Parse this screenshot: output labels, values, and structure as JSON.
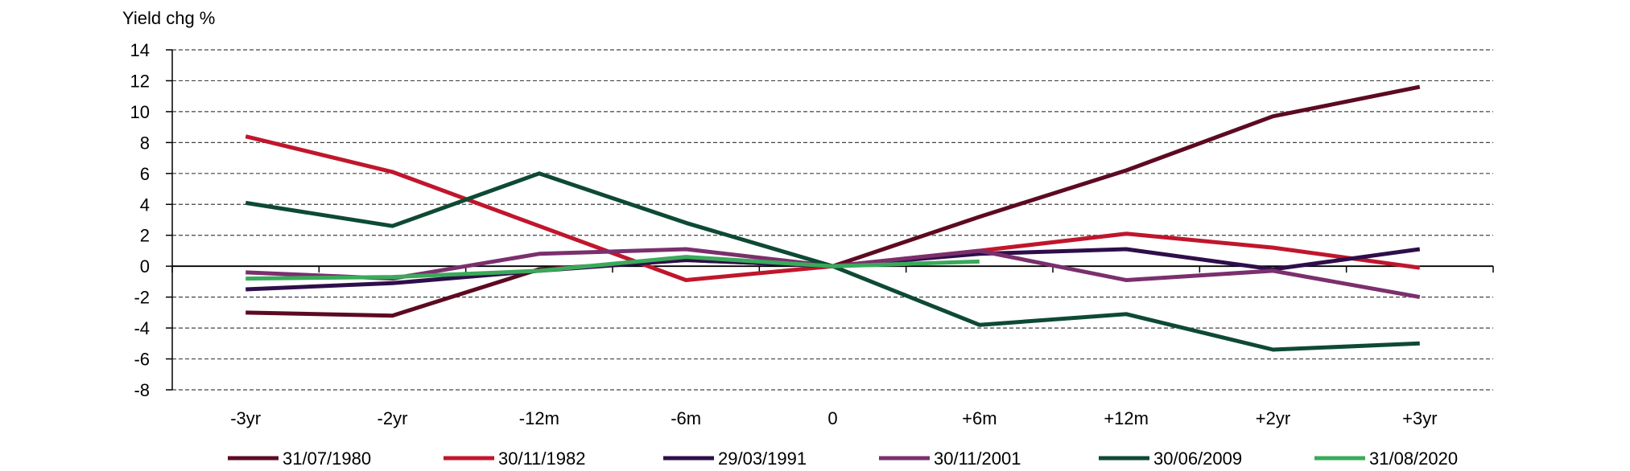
{
  "chart_data": {
    "type": "line",
    "ylabel": "Yield chg %",
    "categories": [
      "-3yr",
      "-2yr",
      "-12m",
      "-6m",
      "0",
      "+6m",
      "+12m",
      "+2yr",
      "+3yr"
    ],
    "ylim": [
      -8,
      14
    ],
    "yticks": [
      -8,
      -6,
      -4,
      -2,
      0,
      2,
      4,
      6,
      8,
      10,
      12,
      14
    ],
    "grid": "horizontal dashed",
    "legend": "bottom",
    "series": [
      {
        "name": "31/07/1980",
        "color": "#5c0a22",
        "values": [
          -3.0,
          -3.2,
          -0.2,
          0.4,
          0.0,
          3.2,
          6.2,
          9.7,
          11.6
        ]
      },
      {
        "name": "30/11/1982",
        "color": "#c0162c",
        "values": [
          8.4,
          6.1,
          2.6,
          -0.9,
          0.0,
          1.0,
          2.1,
          1.2,
          -0.1
        ]
      },
      {
        "name": "29/03/1991",
        "color": "#2e0e4a",
        "values": [
          -1.5,
          -1.1,
          -0.3,
          0.4,
          0.0,
          0.8,
          1.1,
          -0.2,
          1.1
        ]
      },
      {
        "name": "30/11/2001",
        "color": "#7b2f6d",
        "values": [
          -0.4,
          -0.8,
          0.8,
          1.1,
          0.0,
          1.0,
          -0.9,
          -0.3,
          -2.0
        ]
      },
      {
        "name": "30/06/2009",
        "color": "#0e4a33",
        "values": [
          4.1,
          2.6,
          6.0,
          2.8,
          0.0,
          -3.8,
          -3.1,
          -5.4,
          -5.0
        ]
      },
      {
        "name": "31/08/2020",
        "color": "#3aaa5a",
        "values": [
          -0.8,
          -0.7,
          -0.3,
          0.6,
          0.0,
          0.3,
          null,
          null,
          null
        ]
      }
    ]
  }
}
